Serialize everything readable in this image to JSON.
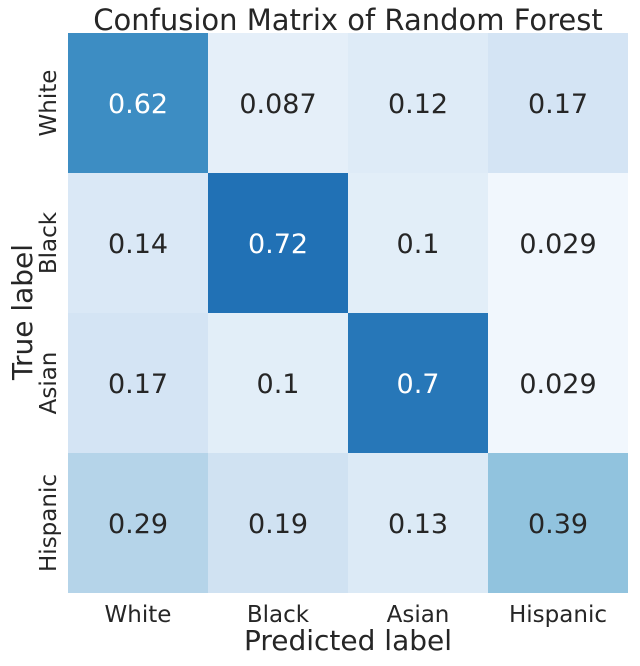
{
  "chart_data": {
    "type": "heatmap",
    "title": "Confusion Matrix of Random Forest",
    "xlabel": "Predicted label",
    "ylabel": "True label",
    "x_categories": [
      "White",
      "Black",
      "Asian",
      "Hispanic"
    ],
    "y_categories": [
      "White",
      "Black",
      "Asian",
      "Hispanic"
    ],
    "values": [
      [
        0.62,
        0.087,
        0.12,
        0.17
      ],
      [
        0.14,
        0.72,
        0.1,
        0.029
      ],
      [
        0.17,
        0.1,
        0.7,
        0.029
      ],
      [
        0.29,
        0.19,
        0.13,
        0.39
      ]
    ],
    "cell_labels": [
      [
        "0.62",
        "0.087",
        "0.12",
        "0.17"
      ],
      [
        "0.14",
        "0.72",
        "0.1",
        "0.029"
      ],
      [
        "0.17",
        "0.1",
        "0.7",
        "0.029"
      ],
      [
        "0.29",
        "0.19",
        "0.13",
        "0.39"
      ]
    ],
    "colormap": "Blues",
    "vmin": 0.029,
    "vmax": 0.72,
    "colorbar": false,
    "grid": false
  }
}
